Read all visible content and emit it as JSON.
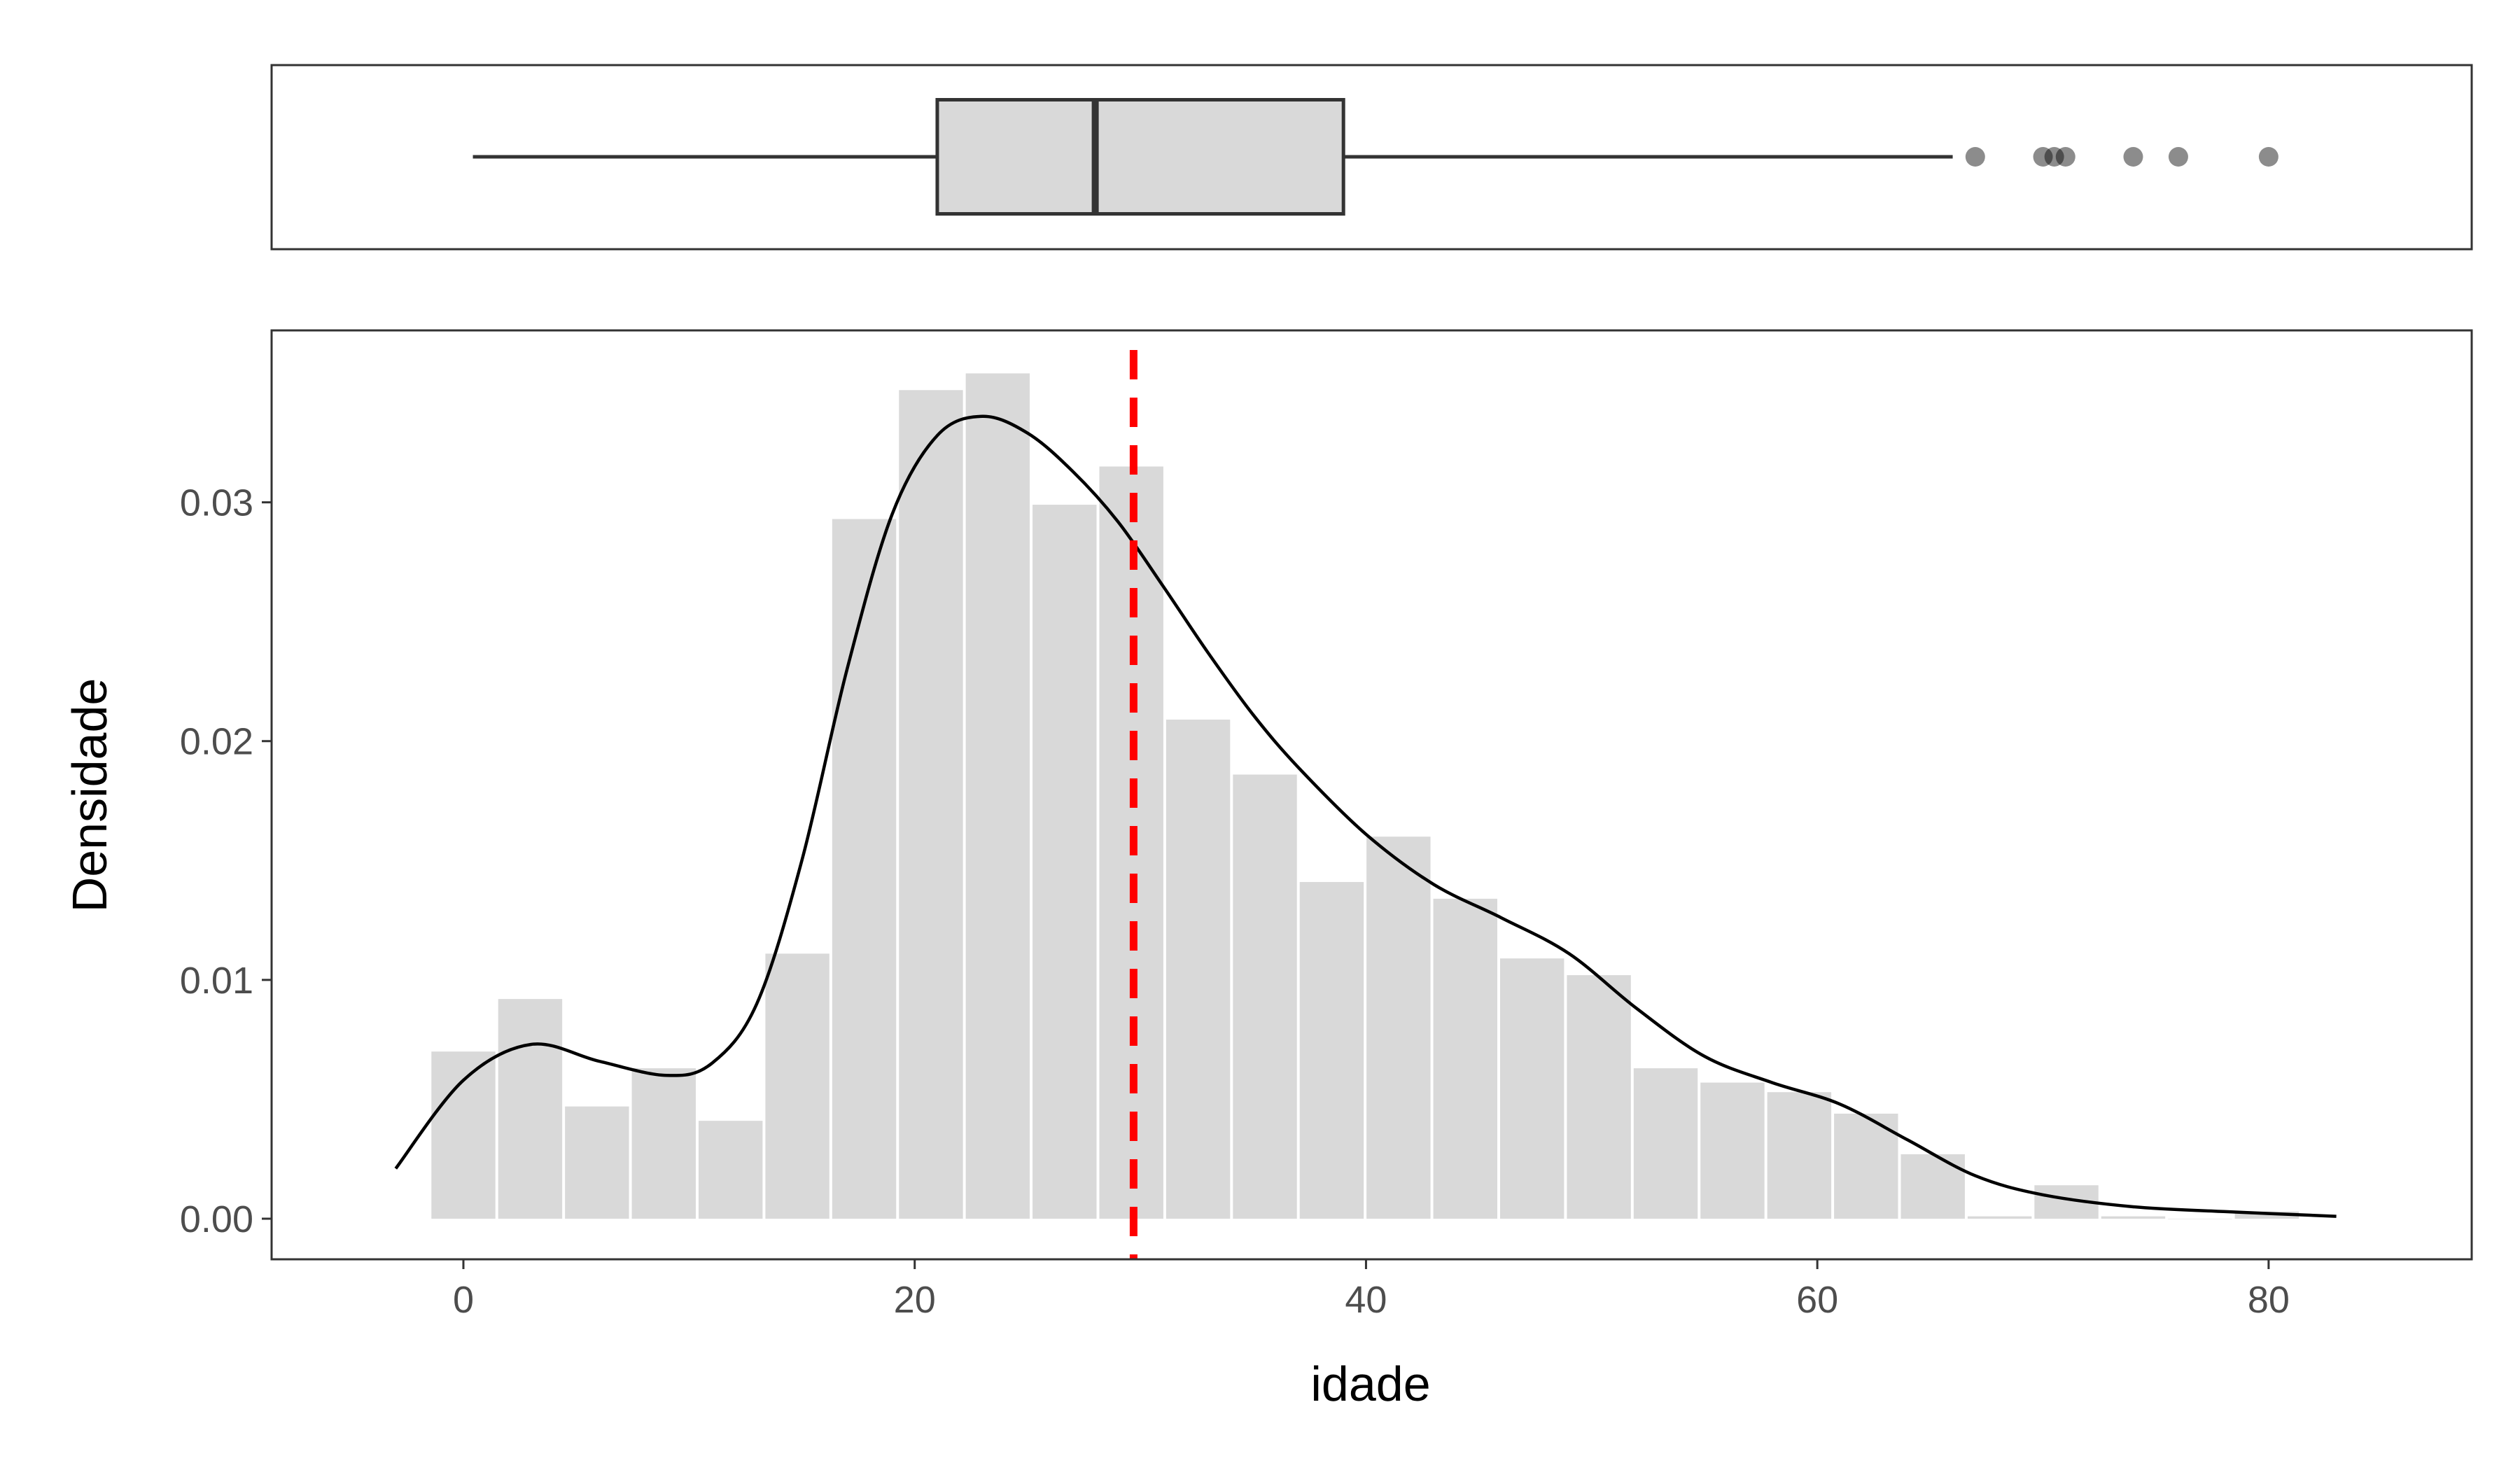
{
  "chart_data": [
    {
      "type": "boxplot",
      "orientation": "horizontal",
      "variable": "idade",
      "whisker_low": 0.42,
      "q1": 21,
      "median": 28,
      "q3": 39,
      "whisker_high": 66,
      "outliers": [
        67,
        70,
        70.5,
        71,
        74,
        76,
        80
      ],
      "fill": "#d9d9d9",
      "line_color": "#333333"
    },
    {
      "type": "histogram",
      "xlabel": "idade",
      "ylabel": "Densidade",
      "xlim": [
        -8.5,
        89
      ],
      "ylim": [
        -0.0017,
        0.0372
      ],
      "xticks": [
        0,
        20,
        40,
        60,
        80
      ],
      "xtick_labels": [
        "0",
        "20",
        "40",
        "60",
        "80"
      ],
      "yticks": [
        0,
        0.01,
        0.02,
        0.03
      ],
      "ytick_labels": [
        "0.00",
        "0.01",
        "0.02",
        "0.03"
      ],
      "bin_width": 2.96,
      "bins": [
        {
          "start": -1.48,
          "end": 1.48,
          "density": 0.007
        },
        {
          "start": 1.48,
          "end": 4.44,
          "density": 0.0092
        },
        {
          "start": 4.44,
          "end": 7.4,
          "density": 0.0047
        },
        {
          "start": 7.4,
          "end": 10.36,
          "density": 0.0063
        },
        {
          "start": 10.36,
          "end": 13.32,
          "density": 0.0041
        },
        {
          "start": 13.32,
          "end": 16.28,
          "density": 0.0111
        },
        {
          "start": 16.28,
          "end": 19.24,
          "density": 0.0293
        },
        {
          "start": 19.24,
          "end": 22.2,
          "density": 0.0347
        },
        {
          "start": 22.2,
          "end": 25.16,
          "density": 0.0354
        },
        {
          "start": 25.16,
          "end": 28.12,
          "density": 0.0299
        },
        {
          "start": 28.12,
          "end": 31.08,
          "density": 0.0315
        },
        {
          "start": 31.08,
          "end": 34.04,
          "density": 0.0209
        },
        {
          "start": 34.04,
          "end": 37.0,
          "density": 0.0186
        },
        {
          "start": 37.0,
          "end": 39.96,
          "density": 0.0141
        },
        {
          "start": 39.96,
          "end": 42.92,
          "density": 0.016
        },
        {
          "start": 42.92,
          "end": 45.88,
          "density": 0.0134
        },
        {
          "start": 45.88,
          "end": 48.84,
          "density": 0.0109
        },
        {
          "start": 48.84,
          "end": 51.8,
          "density": 0.0102
        },
        {
          "start": 51.8,
          "end": 54.76,
          "density": 0.0063
        },
        {
          "start": 54.76,
          "end": 57.72,
          "density": 0.0057
        },
        {
          "start": 57.72,
          "end": 60.68,
          "density": 0.0053
        },
        {
          "start": 60.68,
          "end": 63.64,
          "density": 0.0044
        },
        {
          "start": 63.64,
          "end": 66.6,
          "density": 0.0027
        },
        {
          "start": 66.6,
          "end": 69.56,
          "density": 0.0001
        },
        {
          "start": 69.56,
          "end": 72.52,
          "density": 0.0014
        },
        {
          "start": 72.52,
          "end": 75.48,
          "density": 0.0001
        },
        {
          "start": 75.48,
          "end": 78.44,
          "density": 0.0
        },
        {
          "start": 78.44,
          "end": 81.4,
          "density": 0.0003
        }
      ],
      "bar_color": "#d9d9d9",
      "density_curve": {
        "x": [
          -3,
          0,
          3,
          6,
          9,
          11,
          13,
          15,
          17,
          19,
          21,
          23,
          25,
          27,
          29,
          31,
          33,
          35,
          37,
          40,
          43,
          46,
          49,
          52,
          55,
          58,
          61,
          64,
          67,
          70,
          74,
          78,
          83
        ],
        "y": [
          0.0021,
          0.0058,
          0.0073,
          0.0066,
          0.006,
          0.0065,
          0.009,
          0.015,
          0.023,
          0.0295,
          0.0328,
          0.0336,
          0.0329,
          0.0313,
          0.0292,
          0.0265,
          0.0237,
          0.0211,
          0.0189,
          0.0161,
          0.014,
          0.0126,
          0.0111,
          0.0088,
          0.0068,
          0.0057,
          0.0048,
          0.0033,
          0.0018,
          0.001,
          0.0005,
          0.0003,
          0.0001
        ],
        "color": "#000000"
      },
      "mean_line": {
        "x": 29.7,
        "color": "#ff0000",
        "style": "dashed"
      },
      "grid": false,
      "legend": "none"
    }
  ]
}
